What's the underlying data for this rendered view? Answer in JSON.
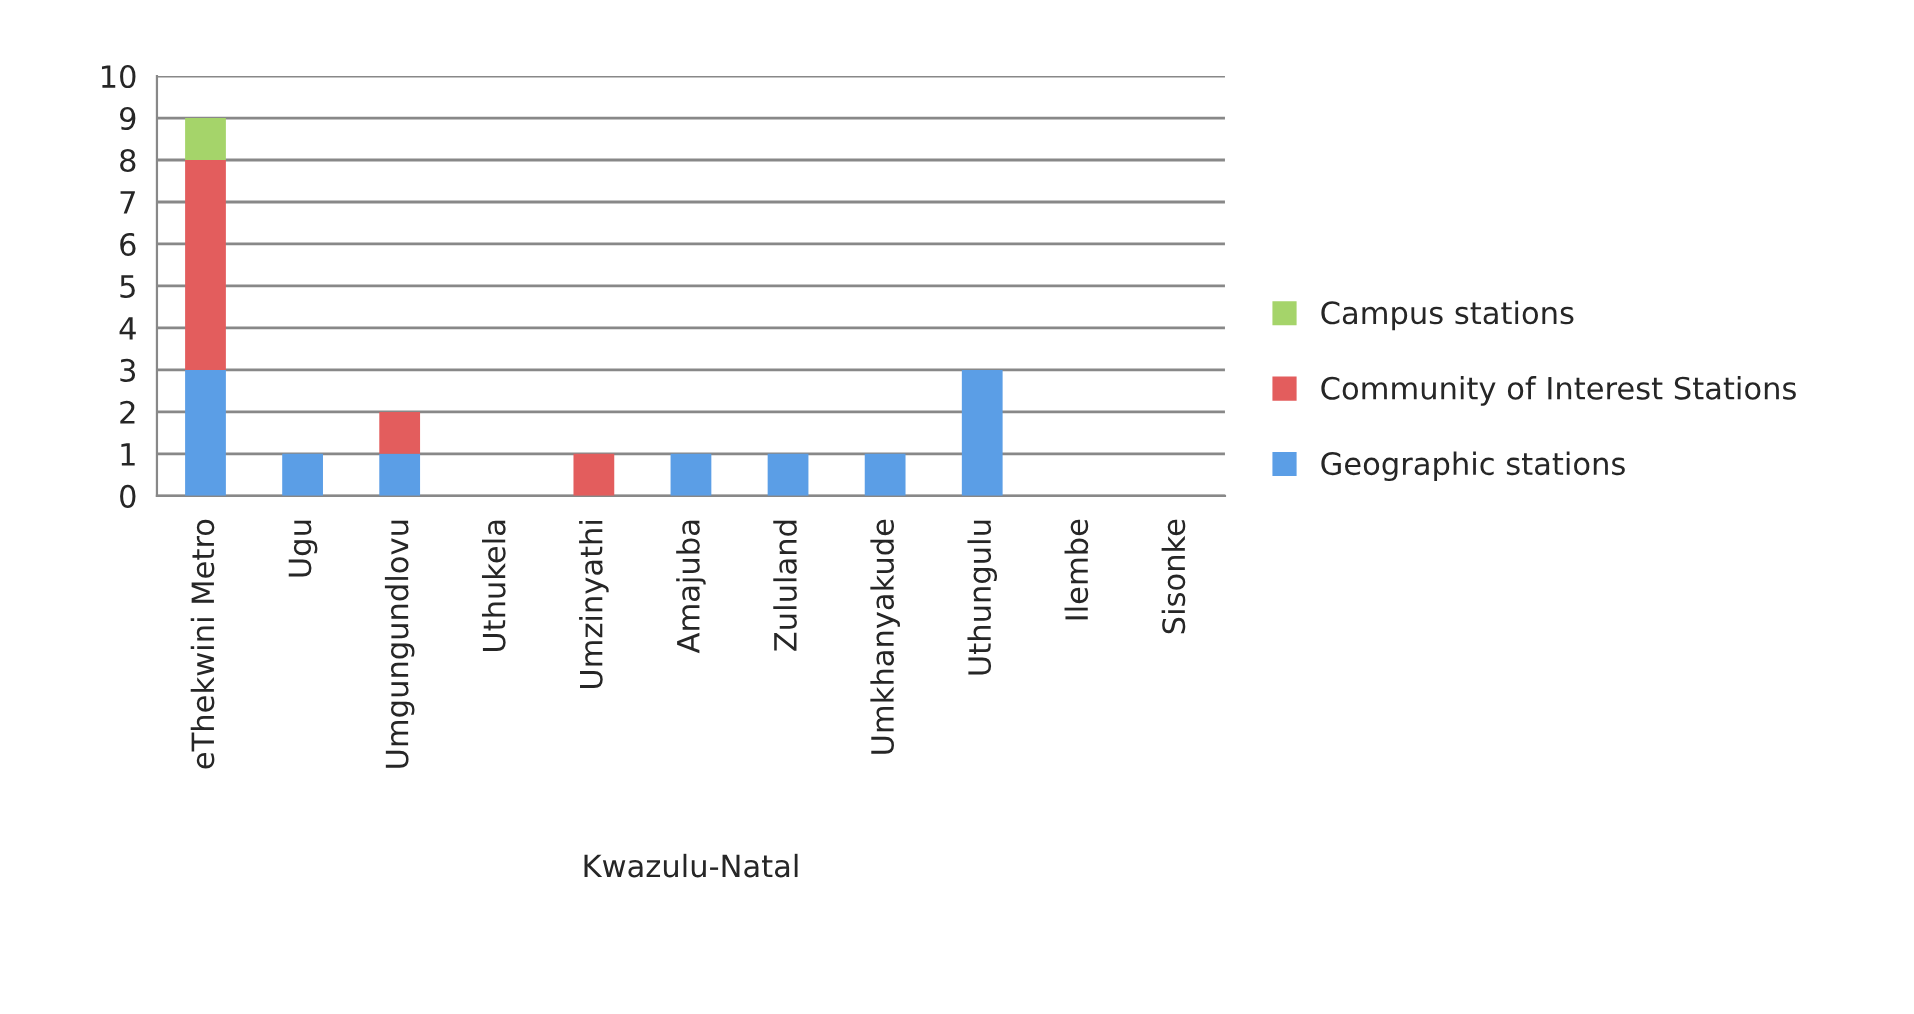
{
  "chart_data": {
    "type": "bar",
    "stacked": true,
    "xlabel": "Kwazulu-Natal",
    "categories": [
      "eThekwini Metro",
      "Ugu",
      "Umgungundlovu",
      "Uthukela",
      "Umzinyathi",
      "Amajuba",
      "Zululand",
      "Umkhanyakude",
      "Uthungulu",
      "Ilembe",
      "Sisonke"
    ],
    "series": [
      {
        "name": "Geographic stations",
        "color": "#5b9ee6",
        "values": [
          3,
          1,
          1,
          0,
          0,
          1,
          1,
          1,
          3,
          0,
          0
        ]
      },
      {
        "name": "Community of Interest Stations",
        "color": "#e35d5d",
        "values": [
          5,
          0,
          1,
          0,
          1,
          0,
          0,
          0,
          0,
          0,
          0
        ]
      },
      {
        "name": "Campus stations",
        "color": "#a5d46a",
        "values": [
          1,
          0,
          0,
          0,
          0,
          0,
          0,
          0,
          0,
          0,
          0
        ]
      }
    ],
    "ylim": [
      0,
      10
    ],
    "yticks": [
      0,
      1,
      2,
      3,
      4,
      5,
      6,
      7,
      8,
      9,
      10
    ],
    "grid": "y",
    "legend": "right"
  }
}
